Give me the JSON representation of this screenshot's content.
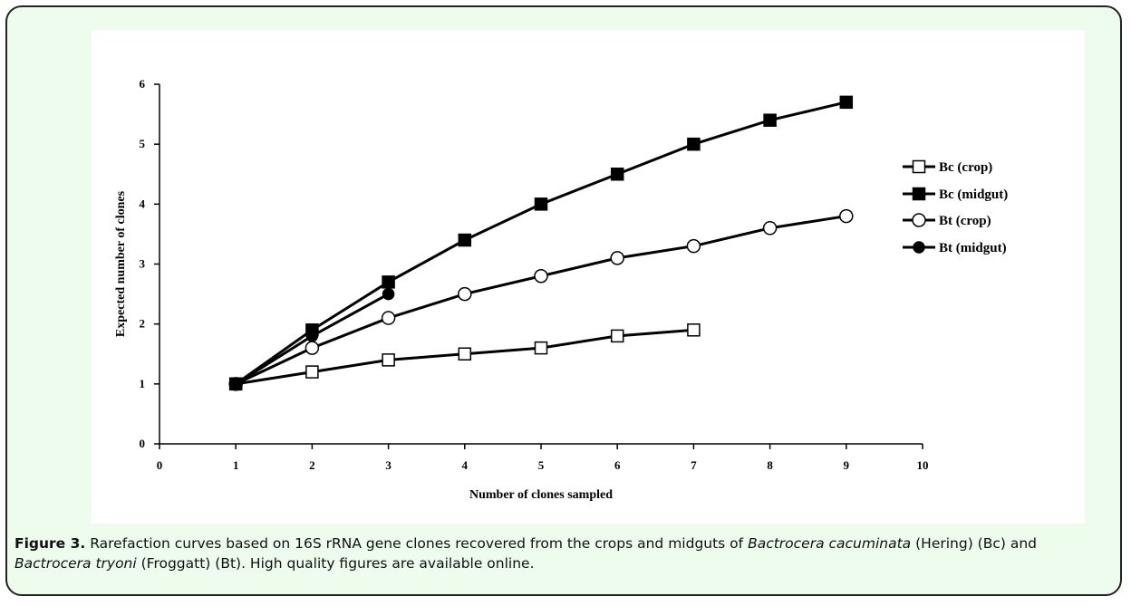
{
  "colors": {
    "frame_bg": "#edfced",
    "frame_border": "#222222",
    "chart_bg": "#ffffff",
    "line": "#000000"
  },
  "caption": {
    "label": "Figure 3.",
    "parts": [
      {
        "text": " Rarefaction curves based on 16S rRNA gene clones recovered from the crops and midguts of ",
        "italic": false
      },
      {
        "text": "Bactrocera cacuminata",
        "italic": true
      },
      {
        "text": " (Hering) (Bc) and ",
        "italic": false
      },
      {
        "text": "Bactrocera tryoni",
        "italic": true
      },
      {
        "text": " (Froggatt) (Bt). High quality figures are available online.",
        "italic": false
      }
    ]
  },
  "chart_data": {
    "type": "line",
    "title": "",
    "xlabel": "Number of clones sampled",
    "ylabel": "Expected number of clones",
    "xlim": [
      0,
      10
    ],
    "ylim": [
      0,
      6
    ],
    "xticks": [
      0,
      1,
      2,
      3,
      4,
      5,
      6,
      7,
      8,
      9,
      10
    ],
    "yticks": [
      0,
      1,
      2,
      3,
      4,
      5,
      6
    ],
    "grid": false,
    "legend_position": "right",
    "series": [
      {
        "name": "Bc (crop)",
        "marker": "square-open",
        "x": [
          1,
          2,
          3,
          4,
          5,
          6,
          7
        ],
        "values": [
          1.0,
          1.2,
          1.4,
          1.5,
          1.6,
          1.8,
          1.9
        ]
      },
      {
        "name": "Bc (midgut)",
        "marker": "square-filled",
        "x": [
          1,
          2,
          3,
          4,
          5,
          6,
          7,
          8,
          9
        ],
        "values": [
          1.0,
          1.9,
          2.7,
          3.4,
          4.0,
          4.5,
          5.0,
          5.4,
          5.7
        ]
      },
      {
        "name": "Bt (crop)",
        "marker": "circle-open",
        "x": [
          1,
          2,
          3,
          4,
          5,
          6,
          7,
          8,
          9
        ],
        "values": [
          1.0,
          1.6,
          2.1,
          2.5,
          2.8,
          3.1,
          3.3,
          3.6,
          3.8
        ]
      },
      {
        "name": "Bt (midgut)",
        "marker": "circle-filled",
        "x": [
          1,
          2,
          3
        ],
        "values": [
          1.0,
          1.8,
          2.5
        ]
      }
    ]
  }
}
